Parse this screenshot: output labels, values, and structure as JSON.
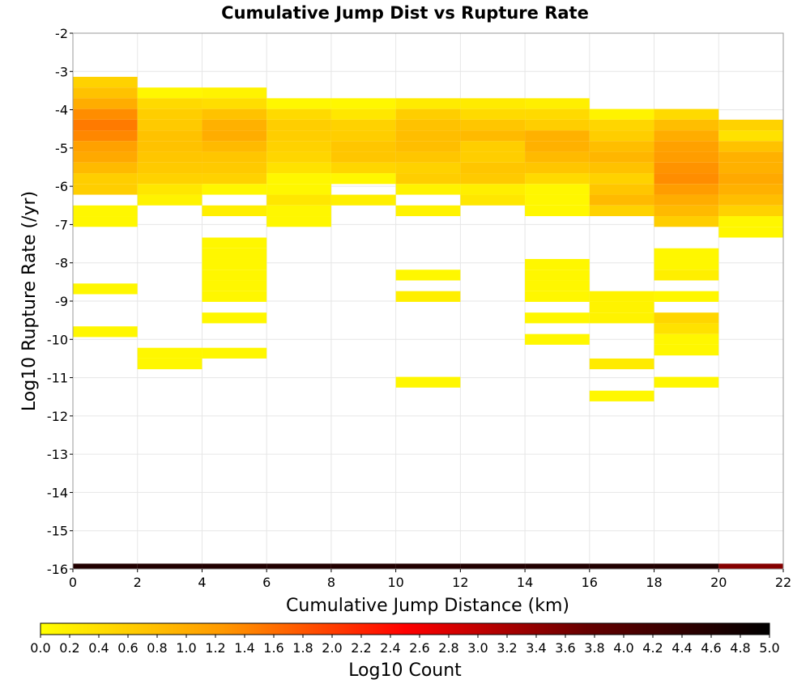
{
  "chart_data": {
    "type": "heatmap",
    "title": "Cumulative Jump Dist vs Rupture Rate",
    "xlabel": "Cumulative Jump Distance (km)",
    "ylabel": "Log10 Rupture Rate (/yr)",
    "xlim": [
      0,
      22
    ],
    "ylim": [
      -16,
      -2
    ],
    "x_ticks": [
      "0",
      "2",
      "4",
      "6",
      "8",
      "10",
      "12",
      "14",
      "16",
      "18",
      "20",
      "22"
    ],
    "y_ticks": [
      "-2",
      "-3",
      "-4",
      "-5",
      "-6",
      "-7",
      "-8",
      "-9",
      "-10",
      "-11",
      "-12",
      "-13",
      "-14",
      "-15",
      "-16"
    ],
    "x_bin_width": 2,
    "y_bin_height": 0.28,
    "grid": true,
    "colorbar": {
      "label": "Log10 Count",
      "range": [
        0,
        5
      ],
      "ticks": [
        "0.0",
        "0.2",
        "0.4",
        "0.6",
        "0.8",
        "1.0",
        "1.2",
        "1.4",
        "1.6",
        "1.8",
        "2.0",
        "2.2",
        "2.4",
        "2.6",
        "2.8",
        "3.0",
        "3.2",
        "3.4",
        "3.6",
        "3.8",
        "4.0",
        "4.2",
        "4.4",
        "4.6",
        "4.8",
        "5.0"
      ],
      "placement": "bottom",
      "colors": [
        "#ffff00",
        "#ff9900",
        "#ff0000",
        "#660000",
        "#000000"
      ]
    },
    "columns": [
      {
        "x": 0,
        "cells": [
          [
            -3.28,
            0.55
          ],
          [
            -3.56,
            0.75
          ],
          [
            -3.84,
            1.0
          ],
          [
            -4.12,
            1.35
          ],
          [
            -4.4,
            1.5
          ],
          [
            -4.68,
            1.4
          ],
          [
            -4.96,
            1.15
          ],
          [
            -5.24,
            1.05
          ],
          [
            -5.52,
            0.85
          ],
          [
            -5.8,
            0.6
          ],
          [
            -6.08,
            0.6
          ],
          [
            -6.64,
            0.1
          ],
          [
            -6.92,
            0.1
          ],
          [
            -8.68,
            0.1
          ],
          [
            -9.8,
            0.1
          ],
          [
            -16.0,
            4.6
          ]
        ]
      },
      {
        "x": 2,
        "cells": [
          [
            -3.56,
            0.1
          ],
          [
            -3.84,
            0.45
          ],
          [
            -4.12,
            0.6
          ],
          [
            -4.4,
            0.65
          ],
          [
            -4.68,
            0.75
          ],
          [
            -4.96,
            0.75
          ],
          [
            -5.24,
            0.7
          ],
          [
            -5.52,
            0.65
          ],
          [
            -5.8,
            0.55
          ],
          [
            -6.08,
            0.3
          ],
          [
            -6.36,
            0.15
          ],
          [
            -10.36,
            0.1
          ],
          [
            -10.64,
            0.1
          ],
          [
            -16.0,
            4.6
          ]
        ]
      },
      {
        "x": 4,
        "cells": [
          [
            -3.56,
            0.15
          ],
          [
            -3.84,
            0.4
          ],
          [
            -4.12,
            0.75
          ],
          [
            -4.4,
            0.95
          ],
          [
            -4.68,
            1.0
          ],
          [
            -4.96,
            0.85
          ],
          [
            -5.24,
            0.7
          ],
          [
            -5.52,
            0.65
          ],
          [
            -5.8,
            0.55
          ],
          [
            -6.08,
            0.1
          ],
          [
            -6.64,
            0.2
          ],
          [
            -7.48,
            0.1
          ],
          [
            -7.76,
            0.1
          ],
          [
            -8.04,
            0.1
          ],
          [
            -8.32,
            0.1
          ],
          [
            -8.6,
            0.1
          ],
          [
            -8.88,
            0.1
          ],
          [
            -9.44,
            0.1
          ],
          [
            -10.36,
            0.1
          ],
          [
            -16.0,
            4.6
          ]
        ]
      },
      {
        "x": 6,
        "cells": [
          [
            -3.84,
            0.1
          ],
          [
            -4.12,
            0.45
          ],
          [
            -4.4,
            0.6
          ],
          [
            -4.68,
            0.6
          ],
          [
            -4.96,
            0.55
          ],
          [
            -5.24,
            0.5
          ],
          [
            -5.52,
            0.35
          ],
          [
            -5.8,
            0.1
          ],
          [
            -6.08,
            0.1
          ],
          [
            -6.36,
            0.3
          ],
          [
            -6.64,
            0.1
          ],
          [
            -6.92,
            0.1
          ],
          [
            -16.0,
            4.6
          ]
        ]
      },
      {
        "x": 8,
        "cells": [
          [
            -3.84,
            0.1
          ],
          [
            -4.12,
            0.3
          ],
          [
            -4.4,
            0.55
          ],
          [
            -4.68,
            0.6
          ],
          [
            -4.96,
            0.7
          ],
          [
            -5.24,
            0.7
          ],
          [
            -5.52,
            0.5
          ],
          [
            -5.8,
            0.1
          ],
          [
            -6.36,
            0.2
          ],
          [
            -16.0,
            4.6
          ]
        ]
      },
      {
        "x": 10,
        "cells": [
          [
            -3.84,
            0.25
          ],
          [
            -4.12,
            0.6
          ],
          [
            -4.4,
            0.75
          ],
          [
            -4.68,
            0.8
          ],
          [
            -4.96,
            0.8
          ],
          [
            -5.24,
            0.7
          ],
          [
            -5.52,
            0.55
          ],
          [
            -5.8,
            0.6
          ],
          [
            -6.08,
            0.15
          ],
          [
            -6.64,
            0.15
          ],
          [
            -8.32,
            0.1
          ],
          [
            -8.88,
            0.2
          ],
          [
            -11.12,
            0.1
          ],
          [
            -16.0,
            4.6
          ]
        ]
      },
      {
        "x": 12,
        "cells": [
          [
            -3.84,
            0.25
          ],
          [
            -4.12,
            0.45
          ],
          [
            -4.4,
            0.7
          ],
          [
            -4.68,
            0.85
          ],
          [
            -4.96,
            0.6
          ],
          [
            -5.24,
            0.6
          ],
          [
            -5.52,
            0.7
          ],
          [
            -5.8,
            0.65
          ],
          [
            -6.08,
            0.2
          ],
          [
            -6.36,
            0.3
          ],
          [
            -16.0,
            4.6
          ]
        ]
      },
      {
        "x": 14,
        "cells": [
          [
            -3.84,
            0.2
          ],
          [
            -4.12,
            0.45
          ],
          [
            -4.4,
            0.6
          ],
          [
            -4.68,
            0.95
          ],
          [
            -4.96,
            0.95
          ],
          [
            -5.24,
            0.85
          ],
          [
            -5.52,
            0.7
          ],
          [
            -5.8,
            0.45
          ],
          [
            -6.08,
            0.1
          ],
          [
            -6.36,
            0.1
          ],
          [
            -6.64,
            0.1
          ],
          [
            -8.04,
            0.1
          ],
          [
            -8.32,
            0.1
          ],
          [
            -8.6,
            0.1
          ],
          [
            -8.88,
            0.1
          ],
          [
            -9.44,
            0.1
          ],
          [
            -10.0,
            0.1
          ],
          [
            -16.0,
            4.6
          ]
        ]
      },
      {
        "x": 16,
        "cells": [
          [
            -4.12,
            0.15
          ],
          [
            -4.4,
            0.5
          ],
          [
            -4.68,
            0.6
          ],
          [
            -4.96,
            0.8
          ],
          [
            -5.24,
            0.9
          ],
          [
            -5.52,
            0.75
          ],
          [
            -5.8,
            0.55
          ],
          [
            -6.08,
            0.7
          ],
          [
            -6.36,
            0.85
          ],
          [
            -6.64,
            0.55
          ],
          [
            -8.88,
            0.15
          ],
          [
            -9.16,
            0.15
          ],
          [
            -9.44,
            0.15
          ],
          [
            -10.64,
            0.25
          ],
          [
            -11.48,
            0.1
          ],
          [
            -16.0,
            4.6
          ]
        ]
      },
      {
        "x": 18,
        "cells": [
          [
            -4.12,
            0.45
          ],
          [
            -4.4,
            0.8
          ],
          [
            -4.68,
            1.0
          ],
          [
            -4.96,
            1.15
          ],
          [
            -5.24,
            1.2
          ],
          [
            -5.52,
            1.3
          ],
          [
            -5.8,
            1.35
          ],
          [
            -6.08,
            1.2
          ],
          [
            -6.36,
            1.0
          ],
          [
            -6.64,
            0.85
          ],
          [
            -6.92,
            0.6
          ],
          [
            -7.76,
            0.1
          ],
          [
            -8.04,
            0.1
          ],
          [
            -8.32,
            0.2
          ],
          [
            -8.88,
            0.1
          ],
          [
            -9.44,
            0.5
          ],
          [
            -9.72,
            0.35
          ],
          [
            -10.0,
            0.1
          ],
          [
            -10.28,
            0.1
          ],
          [
            -11.12,
            0.1
          ],
          [
            -16.0,
            4.6
          ]
        ]
      },
      {
        "x": 20,
        "cells": [
          [
            -4.4,
            0.55
          ],
          [
            -4.68,
            0.35
          ],
          [
            -4.96,
            0.75
          ],
          [
            -5.24,
            0.95
          ],
          [
            -5.52,
            0.95
          ],
          [
            -5.8,
            1.05
          ],
          [
            -6.08,
            0.95
          ],
          [
            -6.36,
            0.8
          ],
          [
            -6.64,
            0.55
          ],
          [
            -6.92,
            0.1
          ],
          [
            -7.2,
            0.1
          ],
          [
            -16.0,
            3.5
          ]
        ]
      }
    ]
  }
}
